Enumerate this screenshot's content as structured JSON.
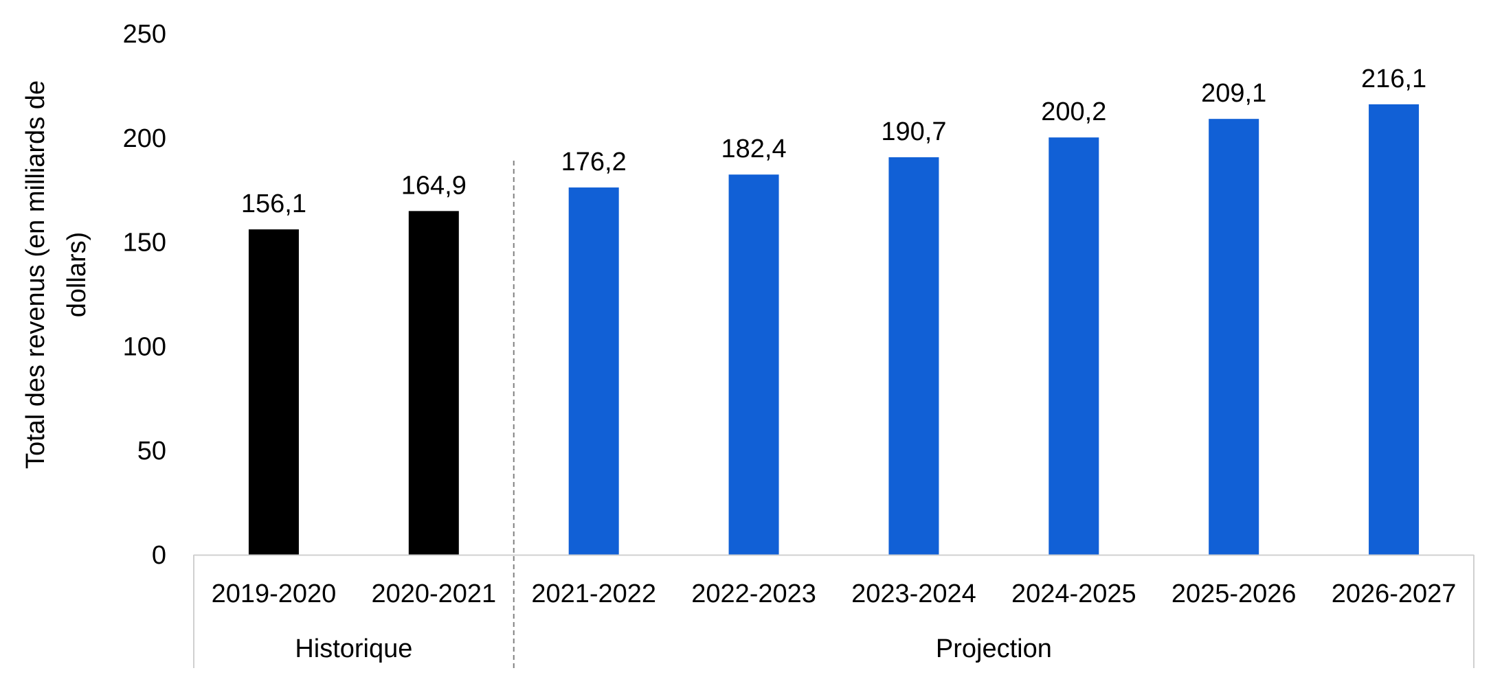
{
  "chart_data": {
    "type": "bar",
    "ylabel": "Total des revenus (en milliards de dollars)",
    "ylabel_lines": [
      "Total des revenus (en milliards de",
      "dollars)"
    ],
    "ylim": [
      0,
      250
    ],
    "yticks": [
      0,
      50,
      100,
      150,
      200,
      250
    ],
    "grid": false,
    "categories": [
      "2019-2020",
      "2020-2021",
      "2021-2022",
      "2022-2023",
      "2023-2024",
      "2024-2025",
      "2025-2026",
      "2026-2027"
    ],
    "values": [
      156.1,
      164.9,
      176.2,
      182.4,
      190.7,
      200.2,
      209.1,
      216.1
    ],
    "data_labels": [
      "156,1",
      "164,9",
      "176,2",
      "182,4",
      "190,7",
      "200,2",
      "209,1",
      "216,1"
    ],
    "groups": [
      {
        "label": "Historique",
        "categories": [
          "2019-2020",
          "2020-2021"
        ],
        "color": "#000000"
      },
      {
        "label": "Projection",
        "categories": [
          "2021-2022",
          "2022-2023",
          "2023-2024",
          "2024-2025",
          "2025-2026",
          "2026-2027"
        ],
        "color": "#1160d6"
      }
    ],
    "colors": {
      "historique": "#000000",
      "projection": "#1160d6",
      "axis": "#d0d0d0",
      "separator": "#808080"
    }
  }
}
